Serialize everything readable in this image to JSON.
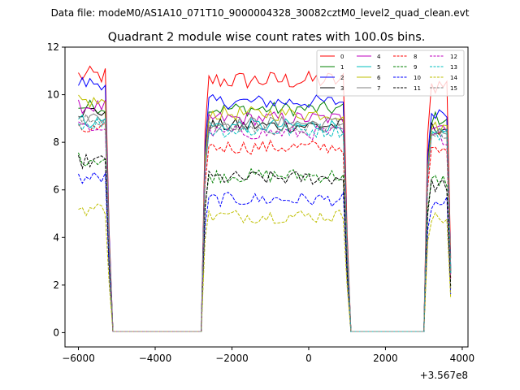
{
  "chart_data": {
    "type": "line",
    "suptitle": "Data file: modeM0/AS1A10_071T10_9000004328_30082cztM0_level2_quad_clean.evt",
    "title": "Quadrant 2 module wise count rates with 100.0s bins.",
    "xlabel": "",
    "ylabel": "",
    "x_offset_label": "+3.567e8",
    "xlim": [
      -6350,
      4150
    ],
    "ylim": [
      -0.6,
      12
    ],
    "xticks": [
      -6000,
      -4000,
      -2000,
      0,
      2000,
      4000
    ],
    "xtick_labels": [
      "−6000",
      "−4000",
      "−2000",
      "0",
      "2000",
      "4000"
    ],
    "yticks": [
      0,
      2,
      4,
      6,
      8,
      10,
      12
    ],
    "ytick_labels": [
      "0",
      "2",
      "4",
      "6",
      "8",
      "10",
      "12"
    ],
    "legend_position": "upper-right",
    "x_start": -6000,
    "x_step": 100,
    "segments": [
      [
        -6000,
        -5200
      ],
      [
        -2700,
        1000
      ],
      [
        3100,
        3700
      ]
    ],
    "gap_ranges": [
      [
        -5100,
        -2800
      ],
      [
        1100,
        3000
      ]
    ],
    "series": [
      {
        "name": "0",
        "color": "#ff0000",
        "dash": "solid",
        "mean": [
          10.8,
          10.6,
          10.4
        ],
        "amp": 0.4
      },
      {
        "name": "1",
        "color": "#008000",
        "dash": "solid",
        "mean": [
          9.5,
          9.4,
          9.0
        ],
        "amp": 0.3
      },
      {
        "name": "2",
        "color": "#0000ff",
        "dash": "solid",
        "mean": [
          10.5,
          9.7,
          9.3
        ],
        "amp": 0.3
      },
      {
        "name": "3",
        "color": "#000000",
        "dash": "solid",
        "mean": [
          9.3,
          8.7,
          8.6
        ],
        "amp": 0.3
      },
      {
        "name": "4",
        "color": "#bf00bf",
        "dash": "solid",
        "mean": [
          9.5,
          9.0,
          8.7
        ],
        "amp": 0.3
      },
      {
        "name": "5",
        "color": "#00bfbf",
        "dash": "solid",
        "mean": [
          8.9,
          8.7,
          8.3
        ],
        "amp": 0.3
      },
      {
        "name": "6",
        "color": "#bfbf00",
        "dash": "solid",
        "mean": [
          9.7,
          9.2,
          8.6
        ],
        "amp": 0.3
      },
      {
        "name": "7",
        "color": "#808080",
        "dash": "solid",
        "mean": [
          9.0,
          8.8,
          8.4
        ],
        "amp": 0.3
      },
      {
        "name": "8",
        "color": "#ff0000",
        "dash": "dashed",
        "mean": [
          8.5,
          7.8,
          7.6
        ],
        "amp": 0.3
      },
      {
        "name": "9",
        "color": "#008000",
        "dash": "dashed",
        "mean": [
          7.3,
          6.6,
          6.4
        ],
        "amp": 0.3
      },
      {
        "name": "10",
        "color": "#0000ff",
        "dash": "dashed",
        "mean": [
          6.5,
          5.6,
          5.4
        ],
        "amp": 0.3
      },
      {
        "name": "11",
        "color": "#000000",
        "dash": "dashed",
        "mean": [
          7.2,
          6.5,
          6.2
        ],
        "amp": 0.3
      },
      {
        "name": "12",
        "color": "#bf00bf",
        "dash": "dashed",
        "mean": [
          8.6,
          8.4,
          8.2
        ],
        "amp": 0.3
      },
      {
        "name": "13",
        "color": "#00bfbf",
        "dash": "dashed",
        "mean": [
          8.8,
          8.5,
          8.3
        ],
        "amp": 0.3
      },
      {
        "name": "14",
        "color": "#bfbf00",
        "dash": "dashed",
        "mean": [
          5.2,
          4.9,
          4.8
        ],
        "amp": 0.3
      },
      {
        "name": "15",
        "color": "#808080",
        "dash": "dashed",
        "mean": [
          8.9,
          8.6,
          8.3
        ],
        "amp": 0.3
      }
    ]
  }
}
